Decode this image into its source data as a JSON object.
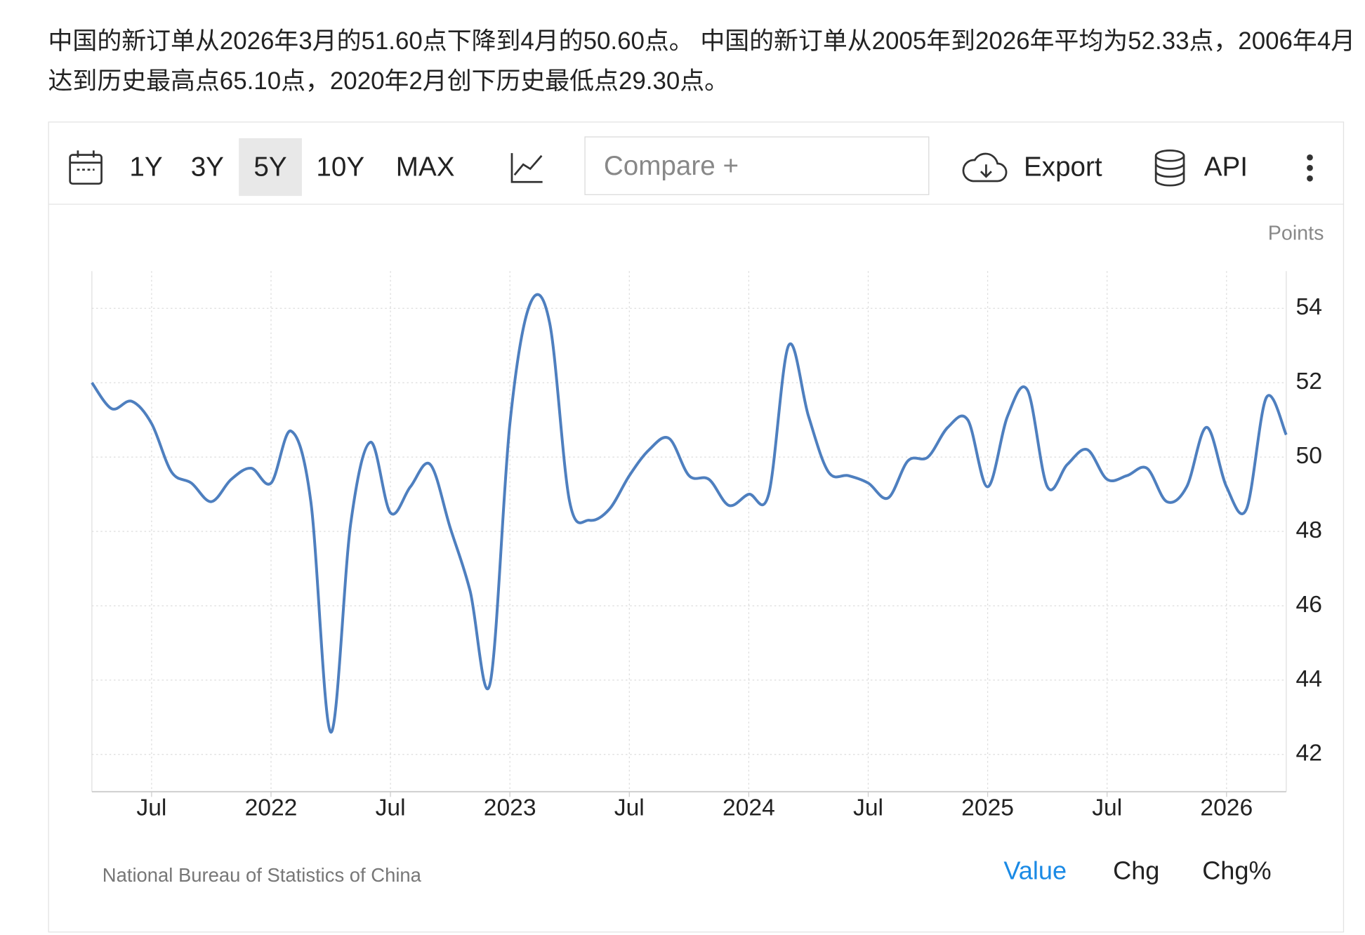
{
  "header": {
    "text": "中国的新订单从2026年3月的51.60点下降到4月的50.60点。 中国的新订单从2005年到2026年平均为52.33点，2006年4月达到历史最高点65.10点，2020年2月创下历史最低点29.30点。"
  },
  "toolbar": {
    "ranges": [
      "1Y",
      "3Y",
      "5Y",
      "10Y",
      "MAX"
    ],
    "selected_range": "5Y",
    "compare": "Compare +",
    "export": "Export",
    "api": "API"
  },
  "chart_data": {
    "type": "line",
    "y_label": "Points",
    "color": "#4e7fbf",
    "x": [
      "2021-04",
      "2021-05",
      "2021-06",
      "2021-07",
      "2021-08",
      "2021-09",
      "2021-10",
      "2021-11",
      "2021-12",
      "2022-01",
      "2022-02",
      "2022-03",
      "2022-04",
      "2022-05",
      "2022-06",
      "2022-07",
      "2022-08",
      "2022-09",
      "2022-10",
      "2022-11",
      "2022-12",
      "2023-01",
      "2023-02",
      "2023-03",
      "2023-04",
      "2023-05",
      "2023-06",
      "2023-07",
      "2023-08",
      "2023-09",
      "2023-10",
      "2023-11",
      "2023-12",
      "2024-01",
      "2024-02",
      "2024-03",
      "2024-04",
      "2024-05",
      "2024-06",
      "2024-07",
      "2024-08",
      "2024-09",
      "2024-10",
      "2024-11",
      "2024-12",
      "2025-01",
      "2025-02",
      "2025-03",
      "2025-04",
      "2025-05",
      "2025-06",
      "2025-07",
      "2025-08",
      "2025-09",
      "2025-10",
      "2025-11",
      "2025-12",
      "2026-01",
      "2026-02",
      "2026-03",
      "2026-04"
    ],
    "values": [
      52.0,
      51.3,
      51.5,
      50.9,
      49.6,
      49.3,
      48.8,
      49.4,
      49.7,
      49.3,
      50.7,
      48.8,
      42.6,
      48.2,
      50.4,
      48.5,
      49.2,
      49.8,
      48.1,
      46.4,
      43.9,
      50.9,
      54.1,
      53.6,
      48.8,
      48.3,
      48.6,
      49.5,
      50.2,
      50.5,
      49.5,
      49.4,
      48.7,
      49.0,
      49.0,
      53.0,
      51.1,
      49.6,
      49.5,
      49.3,
      48.9,
      49.9,
      50.0,
      50.8,
      51.0,
      49.2,
      51.1,
      51.8,
      49.2,
      49.8,
      50.2,
      49.4,
      49.5,
      49.7,
      48.8,
      49.2,
      50.8,
      49.2,
      48.6,
      51.6,
      50.6
    ],
    "xlim": [
      "2021-04",
      "2026-04"
    ],
    "xticks": [
      {
        "value": "2021-07",
        "label": "Jul"
      },
      {
        "value": "2022-01",
        "label": "2022"
      },
      {
        "value": "2022-07",
        "label": "Jul"
      },
      {
        "value": "2023-01",
        "label": "2023"
      },
      {
        "value": "2023-07",
        "label": "Jul"
      },
      {
        "value": "2024-01",
        "label": "2024"
      },
      {
        "value": "2024-07",
        "label": "Jul"
      },
      {
        "value": "2025-01",
        "label": "2025"
      },
      {
        "value": "2025-07",
        "label": "Jul"
      },
      {
        "value": "2026-01",
        "label": "2026"
      }
    ],
    "ylim": [
      41,
      55
    ],
    "yticks": [
      42,
      44,
      46,
      48,
      50,
      52,
      54
    ],
    "grid": true
  },
  "footer": {
    "source": "National Bureau of Statistics of China",
    "tabs": [
      "Value",
      "Chg",
      "Chg%"
    ],
    "selected_tab": "Value"
  }
}
